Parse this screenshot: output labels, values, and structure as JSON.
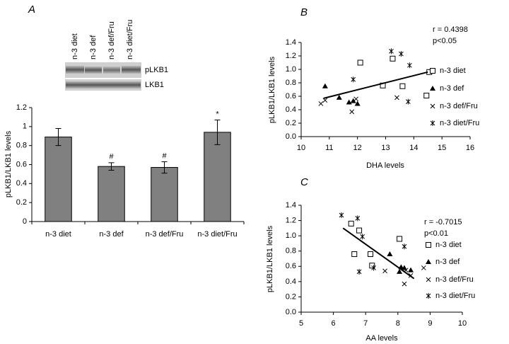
{
  "chart_data": [
    {
      "type": "bar",
      "panel": "A",
      "blot_lanes": [
        "n-3 diet",
        "n-3 def",
        "n-3 def/Fru",
        "n-3 diet/Fru"
      ],
      "blot_rows": [
        "pLKB1",
        "LKB1"
      ],
      "ylabel": "pLKB1/LKB1 levels",
      "categories": [
        "n-3 diet",
        "n-3 def",
        "n-3 def/Fru",
        "n-3 diet/Fru"
      ],
      "values": [
        0.89,
        0.58,
        0.57,
        0.94
      ],
      "errors": [
        0.09,
        0.04,
        0.06,
        0.13
      ],
      "markers": [
        null,
        "#",
        "#",
        "*"
      ],
      "color": "#808080",
      "ylim": [
        0,
        1.2
      ],
      "yticks": [
        0,
        0.2,
        0.4,
        0.6,
        0.8,
        1,
        1.2
      ]
    },
    {
      "type": "scatter",
      "panel": "B",
      "xlabel": "DHA levels",
      "ylabel": "pLKB1/LKB1 levels",
      "annotations": [
        "r = 0.4398",
        "p<0.05"
      ],
      "xlim": [
        10,
        16
      ],
      "xticks": [
        10,
        11,
        12,
        13,
        14,
        15,
        16
      ],
      "ylim": [
        0,
        1.4
      ],
      "yticks": [
        {
          "value": 0,
          "label": "0.0"
        },
        0.2,
        0.4,
        0.6,
        0.8,
        {
          "value": 1,
          "label": "1.0"
        },
        1.2,
        1.4
      ],
      "series": [
        {
          "name": "n-3 diet",
          "marker": "square-open",
          "color": "#000000",
          "x": [
            12.1,
            13.25,
            12.9,
            13.6,
            14.45,
            14.55
          ],
          "values": [
            1.1,
            1.16,
            0.76,
            0.75,
            0.61,
            0.96
          ]
        },
        {
          "name": "n-3 def",
          "marker": "triangle",
          "color": "#000000",
          "x": [
            10.85,
            11.35,
            11.7,
            11.85,
            12.0
          ],
          "values": [
            0.75,
            0.58,
            0.51,
            0.53,
            0.49
          ]
        },
        {
          "name": "n-3 def/Fru",
          "marker": "x",
          "color": "#000000",
          "x": [
            10.7,
            10.85,
            11.8,
            11.95,
            13.4
          ],
          "values": [
            0.49,
            0.54,
            0.37,
            0.56,
            0.58
          ]
        },
        {
          "name": "n-3 diet/Fru",
          "marker": "asterisk",
          "color": "#000000",
          "x": [
            11.85,
            13.2,
            13.55,
            13.85,
            13.8
          ],
          "values": [
            0.85,
            1.27,
            1.23,
            1.06,
            0.52
          ]
        }
      ],
      "trendline": {
        "x": [
          10.8,
          14.5
        ],
        "y": [
          0.57,
          0.96
        ]
      }
    },
    {
      "type": "scatter",
      "panel": "C",
      "xlabel": "AA levels",
      "ylabel": "pLKB1/LKB1 levels",
      "annotations": [
        "r = -0.7015",
        "p<0.01"
      ],
      "xlim": [
        5,
        10
      ],
      "xticks": [
        5,
        6,
        7,
        8,
        9,
        10
      ],
      "ylim": [
        0,
        1.4
      ],
      "yticks": [
        {
          "value": 0,
          "label": "0.0"
        },
        0.2,
        0.4,
        0.6,
        0.8,
        {
          "value": 1,
          "label": "1.0"
        },
        1.2,
        1.4
      ],
      "series": [
        {
          "name": "n-3 diet",
          "marker": "square-open",
          "color": "#000000",
          "x": [
            6.55,
            6.65,
            6.8,
            7.15,
            7.2,
            8.05
          ],
          "values": [
            1.16,
            0.76,
            1.07,
            0.76,
            0.61,
            0.96
          ]
        },
        {
          "name": "n-3 def",
          "marker": "triangle",
          "color": "#000000",
          "x": [
            7.75,
            8.05,
            8.1,
            8.2,
            8.4
          ],
          "values": [
            0.76,
            0.53,
            0.59,
            0.58,
            0.55
          ]
        },
        {
          "name": "n-3 def/Fru",
          "marker": "x",
          "color": "#000000",
          "x": [
            7.6,
            8.2,
            8.25,
            8.4,
            8.8
          ],
          "values": [
            0.54,
            0.37,
            0.55,
            0.48,
            0.58
          ]
        },
        {
          "name": "n-3 diet/Fru",
          "marker": "asterisk",
          "color": "#000000",
          "x": [
            6.25,
            6.75,
            6.9,
            6.8,
            7.25,
            8.2
          ],
          "values": [
            1.27,
            1.23,
            0.99,
            0.53,
            0.58,
            0.86
          ]
        }
      ],
      "trendline": {
        "x": [
          6.3,
          8.5
        ],
        "y": [
          1.1,
          0.44
        ]
      }
    }
  ]
}
